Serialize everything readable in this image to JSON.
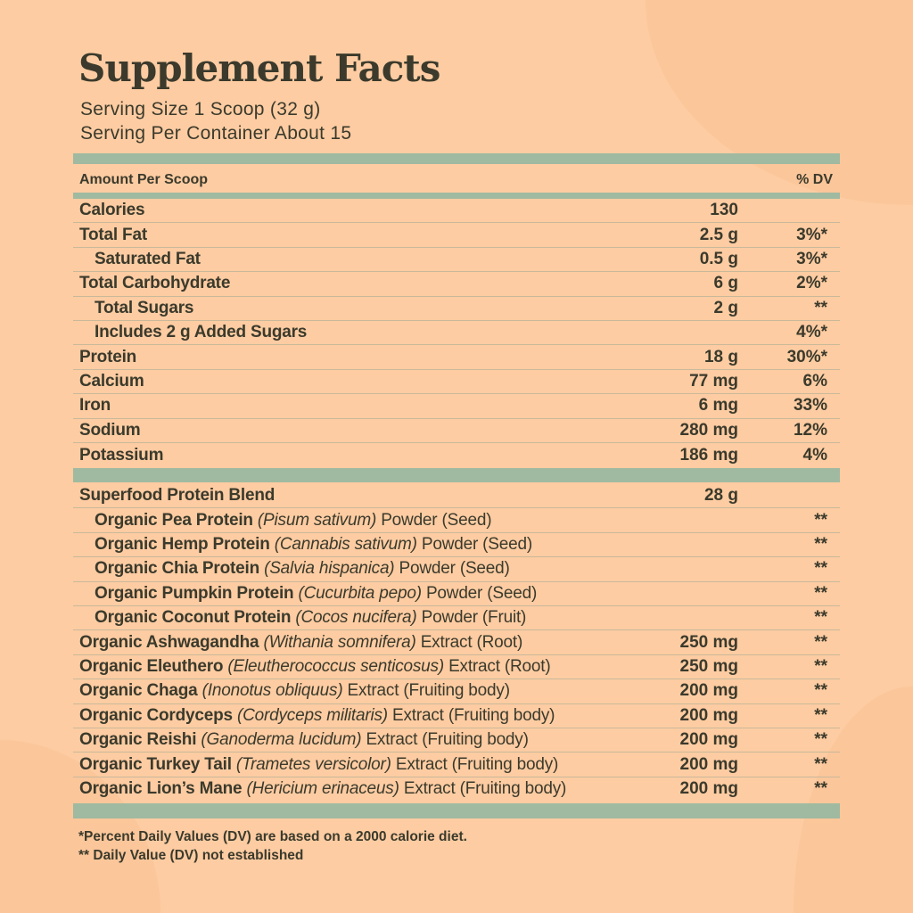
{
  "title": "Supplement Facts",
  "serving_size": "Serving Size 1 Scoop (32 g)",
  "servings_per_container": "Serving Per Container About 15",
  "header": {
    "amount": "Amount Per Scoop",
    "dv": "% DV"
  },
  "colors": {
    "background": "#fdcca2",
    "band": "#9fbaa0",
    "text": "#3b3a2c"
  },
  "nutrients": [
    {
      "label": "Calories",
      "amount": "130",
      "dv": "",
      "indent": false
    },
    {
      "label": "Total Fat",
      "amount": "2.5 g",
      "dv": "3%*",
      "indent": false
    },
    {
      "label": "Saturated Fat",
      "amount": "0.5 g",
      "dv": "3%*",
      "indent": true
    },
    {
      "label": "Total Carbohydrate",
      "amount": "6 g",
      "dv": "2%*",
      "indent": false
    },
    {
      "label": "Total Sugars",
      "amount": "2 g",
      "dv": "**",
      "indent": true
    },
    {
      "label": "Includes 2 g Added Sugars",
      "amount": "",
      "dv": "4%*",
      "indent": true
    },
    {
      "label": "Protein",
      "amount": "18 g",
      "dv": "30%*",
      "indent": false
    },
    {
      "label": "Calcium",
      "amount": "77 mg",
      "dv": "6%",
      "indent": false
    },
    {
      "label": "Iron",
      "amount": "6 mg",
      "dv": "33%",
      "indent": false
    },
    {
      "label": "Sodium",
      "amount": "280 mg",
      "dv": "12%",
      "indent": false
    },
    {
      "label": "Potassium",
      "amount": "186 mg",
      "dv": "4%",
      "indent": false
    }
  ],
  "ingredients": [
    {
      "name": "Superfood Protein Blend",
      "latin": "",
      "part": "",
      "amount": "28 g",
      "dv": "",
      "indent": false
    },
    {
      "name": "Organic Pea Protein",
      "latin": "(Pisum sativum)",
      "part": "Powder (Seed)",
      "amount": "",
      "dv": "**",
      "indent": true
    },
    {
      "name": "Organic Hemp Protein",
      "latin": "(Cannabis sativum)",
      "part": "Powder (Seed)",
      "amount": "",
      "dv": "**",
      "indent": true
    },
    {
      "name": "Organic Chia Protein",
      "latin": "(Salvia hispanica)",
      "part": "Powder (Seed)",
      "amount": "",
      "dv": "**",
      "indent": true
    },
    {
      "name": "Organic Pumpkin Protein",
      "latin": "(Cucurbita pepo)",
      "part": "Powder (Seed)",
      "amount": "",
      "dv": "**",
      "indent": true
    },
    {
      "name": "Organic Coconut Protein",
      "latin": "(Cocos nucifera)",
      "part": "Powder (Fruit)",
      "amount": "",
      "dv": "**",
      "indent": true
    },
    {
      "name": "Organic Ashwagandha",
      "latin": "(Withania somnifera)",
      "part": "Extract (Root)",
      "amount": "250 mg",
      "dv": "**",
      "indent": false
    },
    {
      "name": "Organic Eleuthero",
      "latin": "(Eleutherococcus senticosus)",
      "part": "Extract (Root)",
      "amount": "250 mg",
      "dv": "**",
      "indent": false
    },
    {
      "name": "Organic Chaga",
      "latin": "(Inonotus obliquus)",
      "part": "Extract (Fruiting body)",
      "amount": "200 mg",
      "dv": "**",
      "indent": false
    },
    {
      "name": "Organic Cordyceps",
      "latin": "(Cordyceps militaris)",
      "part": "Extract (Fruiting body)",
      "amount": "200 mg",
      "dv": "**",
      "indent": false
    },
    {
      "name": "Organic Reishi",
      "latin": "(Ganoderma lucidum)",
      "part": "Extract (Fruiting body)",
      "amount": "200 mg",
      "dv": "**",
      "indent": false
    },
    {
      "name": "Organic Turkey Tail",
      "latin": "(Trametes versicolor)",
      "part": "Extract (Fruiting body)",
      "amount": "200 mg",
      "dv": "**",
      "indent": false
    },
    {
      "name": "Organic Lion’s Mane",
      "latin": "(Hericium erinaceus)",
      "part": "Extract (Fruiting body)",
      "amount": "200 mg",
      "dv": "**",
      "indent": false
    }
  ],
  "footnotes": [
    "*Percent Daily Values (DV) are based on a 2000 calorie diet.",
    "** Daily Value (DV) not established"
  ]
}
